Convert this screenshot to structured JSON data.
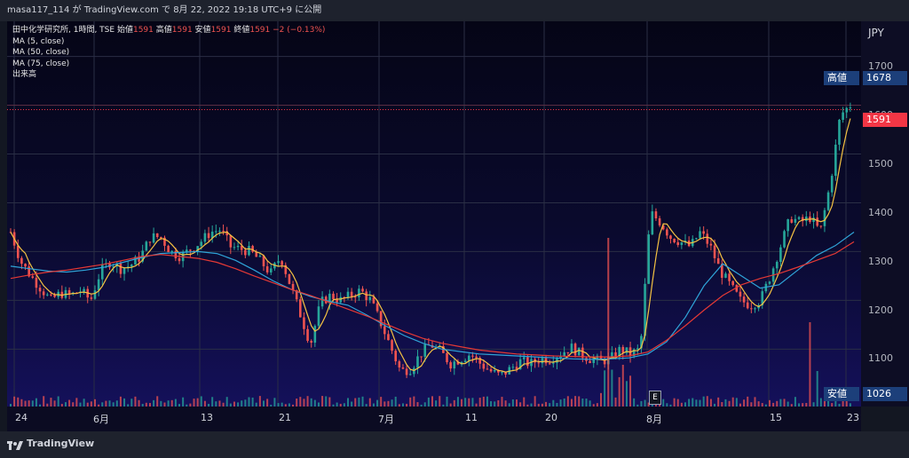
{
  "header": {
    "user": "masa117_114",
    "ga": "が",
    "site": "TradingView.com",
    "de": "で",
    "date": "8月 22, 2022 19:18 UTC+9",
    "suffix": "に公開"
  },
  "legend": {
    "symbol": "田中化学研究所, 1時間, TSE",
    "open_label": "始値",
    "open": "1591",
    "high_label": "高値",
    "high": "1591",
    "low_label": "安値",
    "low": "1591",
    "close_label": "終値",
    "close": "1591",
    "change": "−2 (−0.13%)",
    "ma1": "MA (5, close)",
    "ma2": "MA (50, close)",
    "ma3": "MA (75, close)",
    "volume": "出来高"
  },
  "price_scale": {
    "currency": "JPY",
    "ticks": [
      "1700",
      "1600",
      "1500",
      "1400",
      "1300",
      "1200",
      "1100"
    ],
    "high_label": "高値",
    "high_value": "1678",
    "last_value": "1591",
    "low_label": "安値",
    "low_value": "1026"
  },
  "time_scale": {
    "ticks": [
      "24",
      "6月",
      "13",
      "21",
      "7月",
      "11",
      "20",
      "8月",
      "15",
      "23"
    ]
  },
  "earnings_marker": "E",
  "footer": {
    "brand": "TradingView"
  },
  "colors": {
    "up": "#26a69a",
    "down": "#ef5350",
    "ma5": "#f5c242",
    "ma50": "#2fa4d8",
    "ma75": "#e53935",
    "price_tag": "#f23645",
    "label_box": "#1c3f7a"
  },
  "chart_data": {
    "type": "candlestick",
    "yrange": [
      1050,
      1720
    ],
    "close_path": [
      1340,
      1280,
      1250,
      1225,
      1200,
      1215,
      1210,
      1220,
      1200,
      1260,
      1280,
      1265,
      1272,
      1290,
      1330,
      1330,
      1300,
      1290,
      1305,
      1320,
      1340,
      1345,
      1310,
      1305,
      1300,
      1280,
      1255,
      1290,
      1230,
      1170,
      1110,
      1195,
      1210,
      1200,
      1210,
      1220,
      1200,
      1155,
      1105,
      1055,
      1060,
      1090,
      1110,
      1095,
      1070,
      1080,
      1090,
      1070,
      1055,
      1045,
      1060,
      1075,
      1070,
      1080,
      1080,
      1090,
      1105,
      1090,
      1080,
      1075,
      1080,
      1100,
      1090,
      1100,
      1380,
      1360,
      1330,
      1320,
      1310,
      1340,
      1310,
      1260,
      1230,
      1200,
      1190,
      1200,
      1250,
      1310,
      1370,
      1360,
      1370,
      1340,
      1440,
      1580,
      1600
    ],
    "ma50_path": [
      1270,
      1265,
      1260,
      1258,
      1262,
      1268,
      1278,
      1288,
      1296,
      1298,
      1300,
      1296,
      1282,
      1262,
      1240,
      1222,
      1208,
      1198,
      1190,
      1170,
      1148,
      1128,
      1112,
      1100,
      1095,
      1090,
      1088,
      1086,
      1084,
      1082,
      1080,
      1079,
      1080,
      1082,
      1090,
      1115,
      1165,
      1230,
      1275,
      1250,
      1225,
      1232,
      1262,
      1292,
      1312,
      1340
    ],
    "ma75_path": [
      1245,
      1252,
      1258,
      1262,
      1268,
      1274,
      1282,
      1290,
      1294,
      1290,
      1286,
      1278,
      1265,
      1250,
      1236,
      1222,
      1210,
      1196,
      1182,
      1168,
      1152,
      1136,
      1122,
      1112,
      1105,
      1098,
      1094,
      1090,
      1088,
      1086,
      1085,
      1084,
      1084,
      1086,
      1094,
      1118,
      1148,
      1180,
      1210,
      1232,
      1245,
      1255,
      1268,
      1282,
      1296,
      1320
    ],
    "volume_note": "volume bars along bottom with large spikes near 8月 and 23"
  }
}
